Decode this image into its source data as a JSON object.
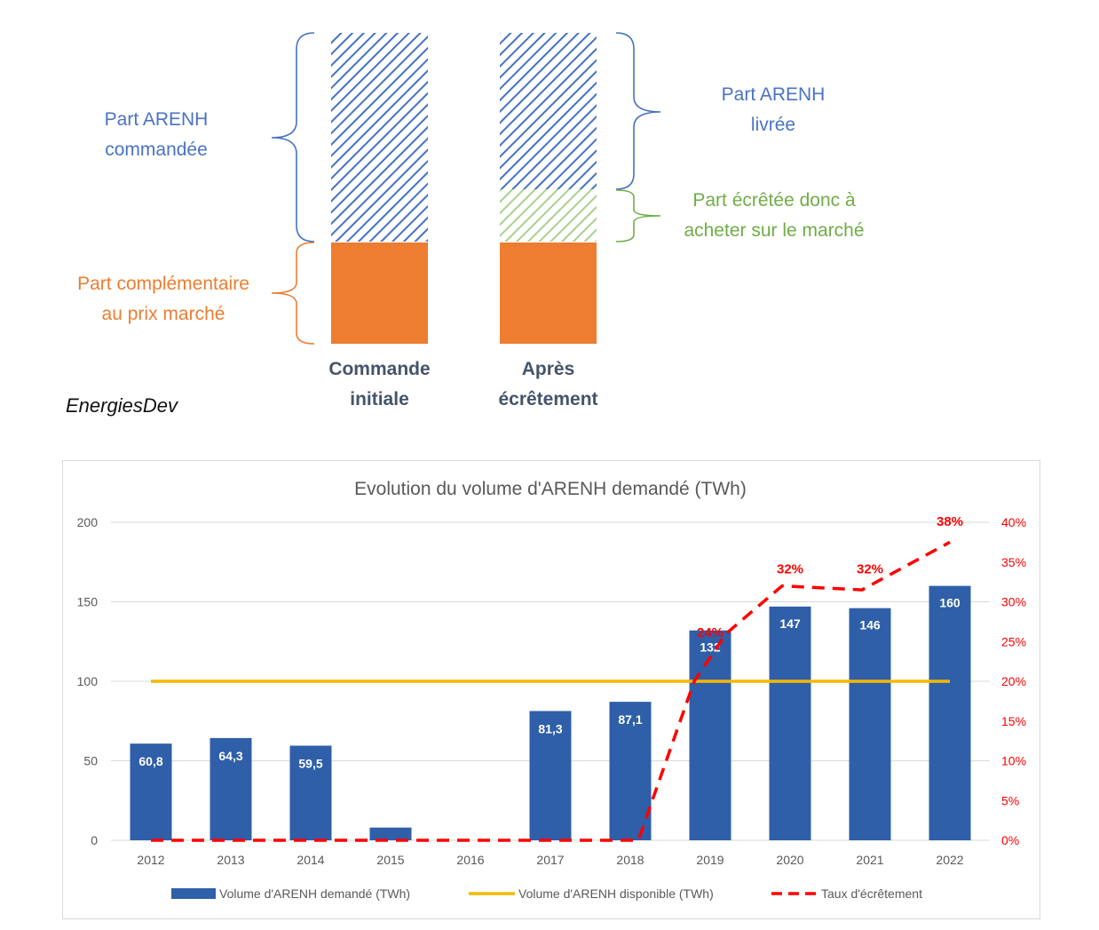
{
  "diagram": {
    "left_bar_caption": [
      "Commande",
      "initiale"
    ],
    "right_bar_caption": [
      "Après",
      "écrêtement"
    ],
    "label_arenh_commandee": [
      "Part ARENH",
      "commandée"
    ],
    "label_complementaire": [
      "Part complémentaire",
      "au prix marché"
    ],
    "label_arenh_livree": [
      "Part ARENH",
      "livrée"
    ],
    "label_ecretee": [
      "Part écrêtée donc à",
      "acheter sur le marché"
    ],
    "colors": {
      "blue": "#4472c4",
      "green": "#70ad47",
      "orange": "#ed7d31"
    }
  },
  "brand": "EnergiesDev",
  "chart_data": {
    "type": "bar",
    "title": "Evolution du volume d'ARENH demandé (TWh)",
    "categories": [
      "2012",
      "2013",
      "2014",
      "2015",
      "2016",
      "2017",
      "2018",
      "2019",
      "2020",
      "2021",
      "2022"
    ],
    "series": [
      {
        "name": "Volume d'ARENH demandé (TWh)",
        "kind": "bar",
        "axis": "left",
        "color": "#2e5fa8",
        "values": [
          60.8,
          64.3,
          59.5,
          8,
          0,
          81.3,
          87.1,
          132,
          147,
          146,
          160
        ],
        "labels": [
          "60,8",
          "64,3",
          "59,5",
          "",
          "",
          "81,3",
          "87,1",
          "132",
          "147",
          "146",
          "160"
        ]
      },
      {
        "name": "Volume d'ARENH disponible (TWh)",
        "kind": "line",
        "axis": "left",
        "color": "#f5b800",
        "values": [
          100,
          100,
          100,
          100,
          100,
          100,
          100,
          100,
          100,
          100,
          100
        ]
      },
      {
        "name": "Taux d'écrêtement",
        "kind": "dashed-line",
        "axis": "right",
        "color": "#ff0000",
        "values": [
          0,
          0,
          0,
          0,
          0,
          0,
          0,
          24,
          32,
          32,
          38
        ],
        "curve_points": [
          [
            0,
            0
          ],
          [
            1,
            0
          ],
          [
            2,
            0
          ],
          [
            3,
            0
          ],
          [
            4,
            0
          ],
          [
            5,
            0
          ],
          [
            6,
            0
          ],
          [
            6.1,
            0
          ],
          [
            6.8,
            20
          ],
          [
            7.2,
            26
          ],
          [
            7.9,
            32
          ],
          [
            8.9,
            31.5
          ],
          [
            10,
            37.5
          ]
        ],
        "labels": [
          {
            "x": 7,
            "value": "24%"
          },
          {
            "x": 8,
            "value": "32%"
          },
          {
            "x": 9,
            "value": "32%"
          },
          {
            "x": 10,
            "value": "38%"
          }
        ]
      }
    ],
    "left_axis": {
      "ylim": [
        0,
        200
      ],
      "ticks": [
        "0",
        "50",
        "100",
        "150",
        "200"
      ]
    },
    "right_axis": {
      "ylim": [
        0,
        40
      ],
      "ticks": [
        "0%",
        "5%",
        "10%",
        "15%",
        "20%",
        "25%",
        "30%",
        "35%",
        "40%"
      ]
    },
    "legend_position": "bottom"
  }
}
